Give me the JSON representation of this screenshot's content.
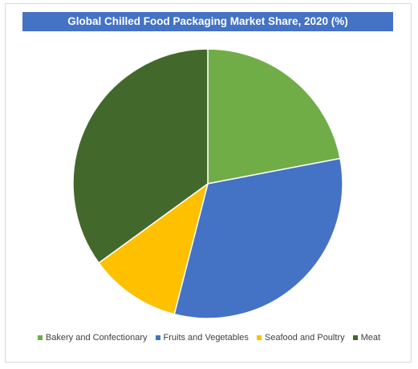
{
  "chart_data": {
    "type": "pie",
    "title": "Global Chilled Food Packaging Market Share, 2020 (%)",
    "categories": [
      "Bakery and Confectionary",
      "Fruits and Vegetables",
      "Seafood and Poultry",
      "Meat"
    ],
    "values": [
      22,
      32,
      11,
      35
    ],
    "colors": [
      "#70ad47",
      "#4472c4",
      "#ffc000",
      "#43682b"
    ],
    "start_angle_deg": 0,
    "direction": "clockwise",
    "legend_position": "bottom"
  }
}
